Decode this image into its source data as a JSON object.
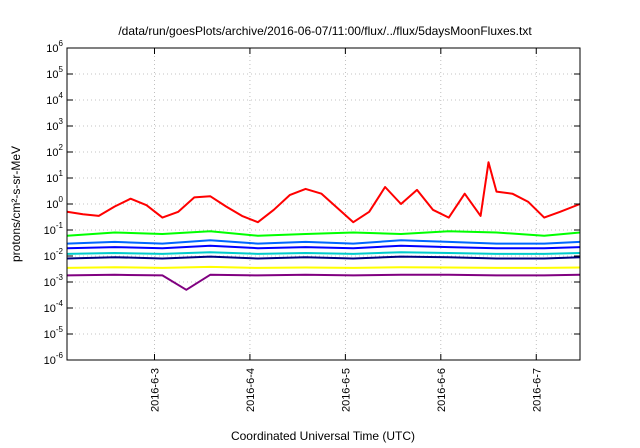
{
  "chart_data": {
    "type": "line",
    "title": "/data/run/goesPlots/archive/2016-06-07/11:00/flux/../flux/5daysMoonFluxes.txt",
    "xlabel": "Coordinated Universal Time (UTC)",
    "ylabel": "protons/cm²-s-sr-MeV",
    "y_scale": "log",
    "ylim": [
      1e-06,
      1000000.0
    ],
    "xlim": [
      "2016-06-02 02:00",
      "2016-06-07 11:00"
    ],
    "grid": true,
    "legend": "none",
    "x_ticks": [
      "2016-6-3",
      "2016-6-4",
      "2016-6-5",
      "2016-6-6",
      "2016-6-7"
    ],
    "y_ticks": [
      {
        "base": "10",
        "exp": "-6"
      },
      {
        "base": "10",
        "exp": "-5"
      },
      {
        "base": "10",
        "exp": "-4"
      },
      {
        "base": "10",
        "exp": "-3"
      },
      {
        "base": "10",
        "exp": "-2"
      },
      {
        "base": "10",
        "exp": "-1"
      },
      {
        "base": "10",
        "exp": "0"
      },
      {
        "base": "10",
        "exp": "1"
      },
      {
        "base": "10",
        "exp": "2"
      },
      {
        "base": "10",
        "exp": "3"
      },
      {
        "base": "10",
        "exp": "4"
      },
      {
        "base": "10",
        "exp": "5"
      },
      {
        "base": "10",
        "exp": "6"
      }
    ],
    "series": [
      {
        "color": "#ff0000",
        "x": [
          "2016-06-02 02:00",
          "2016-06-02 06:00",
          "2016-06-02 10:00",
          "2016-06-02 14:00",
          "2016-06-02 18:00",
          "2016-06-02 22:00",
          "2016-06-03 02:00",
          "2016-06-03 06:00",
          "2016-06-03 10:00",
          "2016-06-03 14:00",
          "2016-06-03 18:00",
          "2016-06-03 22:00",
          "2016-06-04 02:00",
          "2016-06-04 06:00",
          "2016-06-04 10:00",
          "2016-06-04 14:00",
          "2016-06-04 18:00",
          "2016-06-04 22:00",
          "2016-06-05 02:00",
          "2016-06-05 06:00",
          "2016-06-05 10:00",
          "2016-06-05 14:00",
          "2016-06-05 18:00",
          "2016-06-05 22:00",
          "2016-06-06 02:00",
          "2016-06-06 06:00",
          "2016-06-06 10:00",
          "2016-06-06 12:00",
          "2016-06-06 14:00",
          "2016-06-06 18:00",
          "2016-06-06 22:00",
          "2016-06-07 02:00",
          "2016-06-07 06:00",
          "2016-06-07 11:00"
        ],
        "values": [
          0.5,
          0.4,
          0.35,
          0.8,
          1.6,
          0.9,
          0.3,
          0.5,
          1.8,
          2.0,
          0.8,
          0.35,
          0.2,
          0.6,
          2.2,
          3.8,
          2.5,
          0.7,
          0.2,
          0.5,
          4.5,
          1.0,
          3.5,
          0.6,
          0.3,
          2.5,
          0.35,
          40,
          3.0,
          2.5,
          1.2,
          0.3,
          0.5,
          1.0
        ]
      },
      {
        "color": "#00ff00",
        "x": [
          "2016-06-02 02:00",
          "2016-06-02 14:00",
          "2016-06-03 02:00",
          "2016-06-03 14:00",
          "2016-06-04 02:00",
          "2016-06-04 14:00",
          "2016-06-05 02:00",
          "2016-06-05 14:00",
          "2016-06-06 02:00",
          "2016-06-06 14:00",
          "2016-06-07 02:00",
          "2016-06-07 11:00"
        ],
        "values": [
          0.06,
          0.08,
          0.07,
          0.09,
          0.06,
          0.07,
          0.08,
          0.07,
          0.09,
          0.08,
          0.06,
          0.08
        ]
      },
      {
        "color": "#0066ff",
        "x": [
          "2016-06-02 02:00",
          "2016-06-02 14:00",
          "2016-06-03 02:00",
          "2016-06-03 14:00",
          "2016-06-04 02:00",
          "2016-06-04 14:00",
          "2016-06-05 02:00",
          "2016-06-05 14:00",
          "2016-06-06 02:00",
          "2016-06-06 14:00",
          "2016-06-07 02:00",
          "2016-06-07 11:00"
        ],
        "values": [
          0.03,
          0.035,
          0.03,
          0.04,
          0.03,
          0.035,
          0.03,
          0.04,
          0.035,
          0.03,
          0.03,
          0.035
        ]
      },
      {
        "color": "#0000ff",
        "x": [
          "2016-06-02 02:00",
          "2016-06-02 14:00",
          "2016-06-03 02:00",
          "2016-06-03 14:00",
          "2016-06-04 02:00",
          "2016-06-04 14:00",
          "2016-06-05 02:00",
          "2016-06-05 14:00",
          "2016-06-06 02:00",
          "2016-06-06 14:00",
          "2016-06-07 02:00",
          "2016-06-07 11:00"
        ],
        "values": [
          0.02,
          0.022,
          0.02,
          0.025,
          0.02,
          0.022,
          0.02,
          0.025,
          0.022,
          0.02,
          0.02,
          0.022
        ]
      },
      {
        "color": "#00cccc",
        "x": [
          "2016-06-02 02:00",
          "2016-06-02 14:00",
          "2016-06-03 02:00",
          "2016-06-03 14:00",
          "2016-06-04 02:00",
          "2016-06-04 14:00",
          "2016-06-05 02:00",
          "2016-06-05 14:00",
          "2016-06-06 02:00",
          "2016-06-06 14:00",
          "2016-06-07 02:00",
          "2016-06-07 11:00"
        ],
        "values": [
          0.012,
          0.013,
          0.012,
          0.014,
          0.012,
          0.013,
          0.012,
          0.014,
          0.013,
          0.012,
          0.012,
          0.013
        ]
      },
      {
        "color": "#000080",
        "x": [
          "2016-06-02 02:00",
          "2016-06-02 14:00",
          "2016-06-03 02:00",
          "2016-06-03 14:00",
          "2016-06-04 02:00",
          "2016-06-04 14:00",
          "2016-06-05 02:00",
          "2016-06-05 14:00",
          "2016-06-06 02:00",
          "2016-06-06 14:00",
          "2016-06-07 02:00",
          "2016-06-07 11:00"
        ],
        "values": [
          0.008,
          0.009,
          0.008,
          0.0095,
          0.008,
          0.009,
          0.008,
          0.0095,
          0.009,
          0.008,
          0.008,
          0.009
        ]
      },
      {
        "color": "#ffff00",
        "x": [
          "2016-06-02 02:00",
          "2016-06-02 14:00",
          "2016-06-03 02:00",
          "2016-06-03 14:00",
          "2016-06-04 02:00",
          "2016-06-04 14:00",
          "2016-06-05 02:00",
          "2016-06-05 14:00",
          "2016-06-06 02:00",
          "2016-06-06 14:00",
          "2016-06-07 02:00",
          "2016-06-07 11:00"
        ],
        "values": [
          0.0035,
          0.0037,
          0.0035,
          0.0038,
          0.0035,
          0.0036,
          0.0035,
          0.0037,
          0.0036,
          0.0035,
          0.0035,
          0.0036
        ]
      },
      {
        "color": "#800080",
        "x": [
          "2016-06-02 02:00",
          "2016-06-02 14:00",
          "2016-06-03 02:00",
          "2016-06-03 08:00",
          "2016-06-03 14:00",
          "2016-06-04 02:00",
          "2016-06-04 14:00",
          "2016-06-05 02:00",
          "2016-06-05 14:00",
          "2016-06-06 02:00",
          "2016-06-06 14:00",
          "2016-06-07 02:00",
          "2016-06-07 11:00"
        ],
        "values": [
          0.0018,
          0.0019,
          0.0018,
          0.0005,
          0.0019,
          0.0018,
          0.0019,
          0.0018,
          0.0019,
          0.0019,
          0.0018,
          0.0018,
          0.0019
        ]
      }
    ]
  }
}
